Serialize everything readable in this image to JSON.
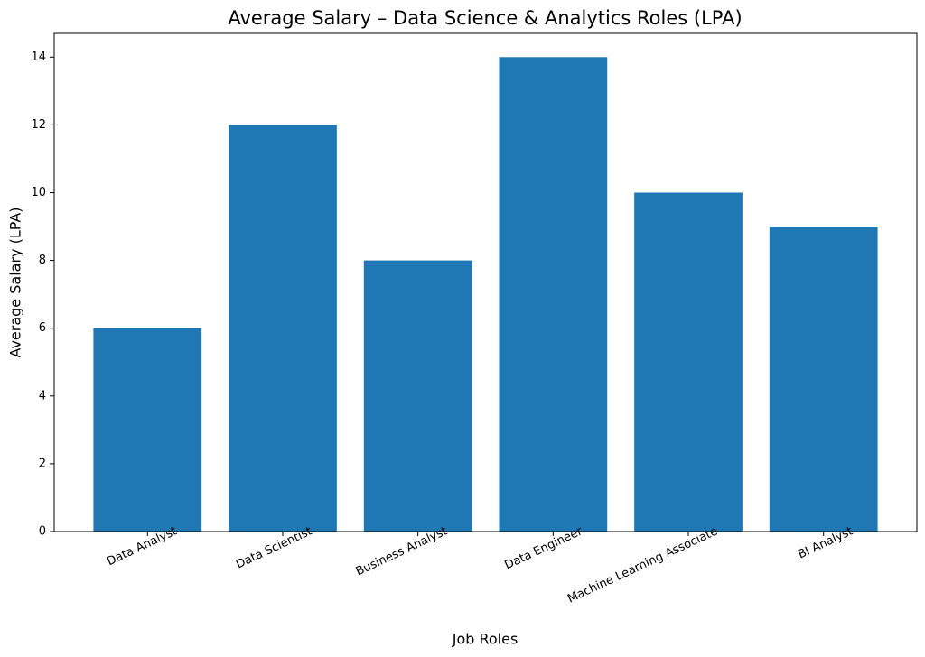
{
  "chart_data": {
    "type": "bar",
    "title": "Average Salary – Data Science & Analytics Roles (LPA)",
    "x_label": "Job Roles",
    "y_label": "Average Salary (LPA)",
    "categories": [
      "Data Analyst",
      "Data Scientist",
      "Business Analyst",
      "Data Engineer",
      "Machine Learning Associate",
      "BI Analyst"
    ],
    "values": [
      6,
      12,
      8,
      14,
      10,
      9
    ],
    "color": "#1f77b4",
    "ylim": [
      0,
      14.7
    ],
    "yticks": [
      0,
      2,
      4,
      6,
      8,
      10,
      12,
      14
    ],
    "grid": false
  }
}
